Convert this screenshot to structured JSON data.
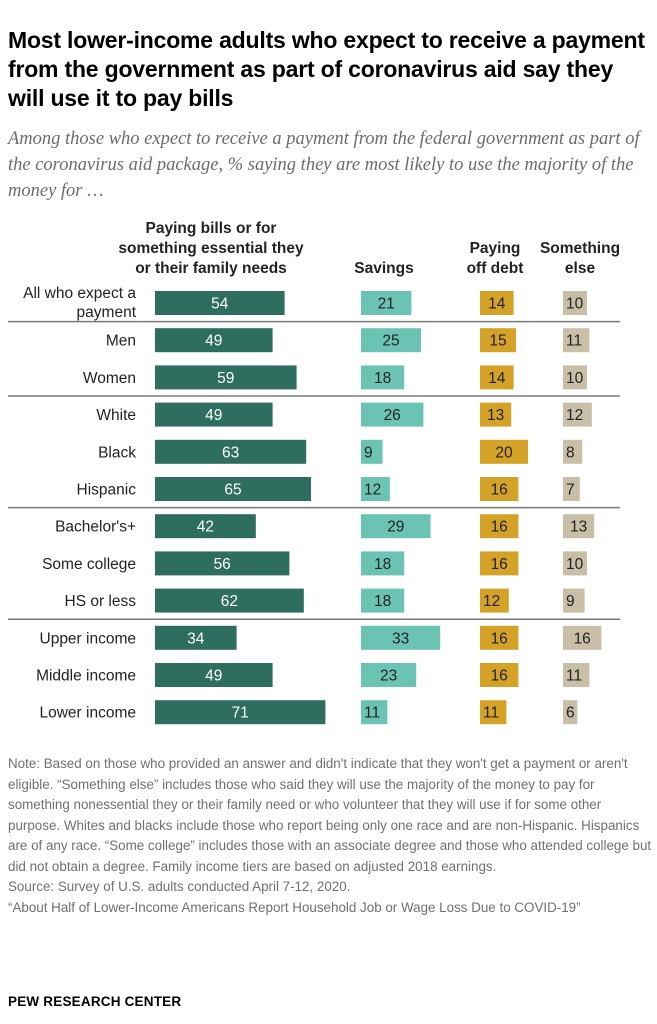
{
  "title": "Most lower-income adults who expect to receive a payment from the government as part of coronavirus aid say they will use it to pay bills",
  "subtitle": "Among those who expect to receive a payment from the federal government as part of the coronavirus aid package, % saying they are most likely to use the majority of the money for …",
  "colors": {
    "bills": "#2e6e5f",
    "savings": "#6bc4b3",
    "debt": "#d4a227",
    "else": "#c8bfa6",
    "divider": "#7a7a7a"
  },
  "chart_data": {
    "type": "bar",
    "categories": [
      "All who expect a payment",
      "Men",
      "Women",
      "White",
      "Black",
      "Hispanic",
      "Bachelor's+",
      "Some college",
      "HS or less",
      "Upper income",
      "Middle income",
      "Lower income"
    ],
    "category_lines": [
      [
        "All who expect a",
        "payment"
      ],
      [
        "Men"
      ],
      [
        "Women"
      ],
      [
        "White"
      ],
      [
        "Black"
      ],
      [
        "Hispanic"
      ],
      [
        "Bachelor's+"
      ],
      [
        "Some college"
      ],
      [
        "HS or less"
      ],
      [
        "Upper income"
      ],
      [
        "Middle income"
      ],
      [
        "Lower income"
      ]
    ],
    "groups_after_index": [
      0,
      2,
      5,
      8
    ],
    "series": [
      {
        "name": "Paying bills or for something essential they or their family needs",
        "header_lines": [
          "Paying bills or for",
          "something essential they",
          "or their family needs"
        ],
        "values": [
          54,
          49,
          59,
          49,
          63,
          65,
          42,
          56,
          62,
          34,
          49,
          71
        ]
      },
      {
        "name": "Savings",
        "header_lines": [
          "Savings"
        ],
        "values": [
          21,
          25,
          18,
          26,
          9,
          12,
          29,
          18,
          18,
          33,
          23,
          11
        ]
      },
      {
        "name": "Paying off debt",
        "header_lines": [
          "Paying",
          "off debt"
        ],
        "values": [
          14,
          15,
          14,
          13,
          20,
          16,
          16,
          16,
          12,
          16,
          16,
          11
        ]
      },
      {
        "name": "Something else",
        "header_lines": [
          "Something",
          "else"
        ],
        "values": [
          10,
          11,
          10,
          12,
          8,
          7,
          13,
          10,
          9,
          16,
          11,
          6
        ]
      }
    ]
  },
  "note": {
    "text": "Note: Based on those who provided an answer and didn't indicate that they won't get a payment or aren't eligible. “Something else” includes those who said they will use the majority of the money to pay for something nonessential they or their family need or who volunteer that they will use if for some other purpose. Whites and blacks include those who report being only one race and are non-Hispanic. Hispanics are of any race. “Some college” includes those with an associate degree and those who attended college but did not obtain a degree. Family income tiers are based on adjusted 2018 earnings.",
    "source": "Source: Survey of U.S. adults conducted April 7-12, 2020.",
    "report": "“About Half of Lower-Income Americans Report Household Job or Wage Loss Due to COVID-19”"
  },
  "brand": "PEW RESEARCH CENTER"
}
